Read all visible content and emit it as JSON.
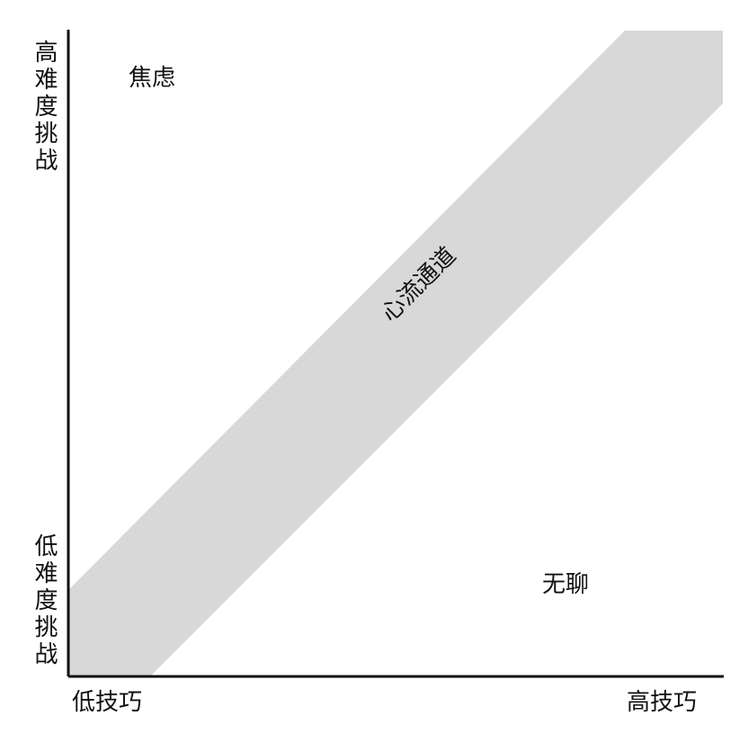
{
  "labels": {
    "y_high": "高难度挑战",
    "y_low": "低难度挑战",
    "x_low": "低技巧",
    "x_high": "高技巧",
    "anxiety": "焦虑",
    "boredom": "无聊",
    "flow_channel": "心流通道"
  },
  "colors": {
    "axis": "#111111",
    "channel_fill": "#d8d8d8",
    "text": "#111111",
    "background": "#ffffff"
  }
}
